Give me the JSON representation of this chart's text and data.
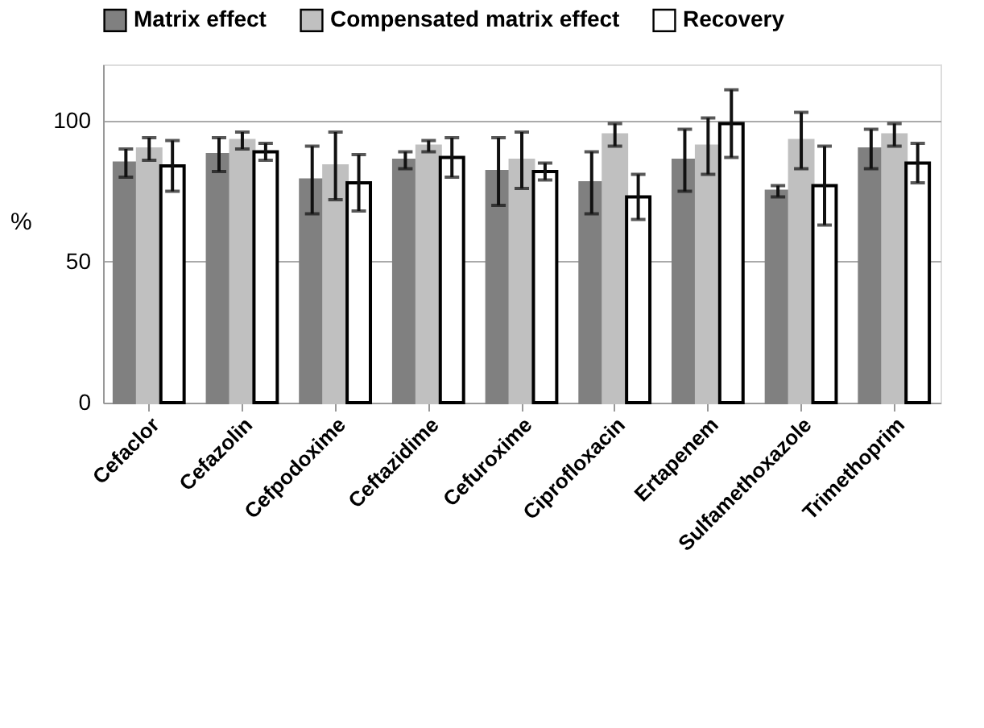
{
  "chart_data": {
    "type": "bar",
    "ylabel": "%",
    "categories": [
      "Cefaclor",
      "Cefazolin",
      "Cefpodoxime",
      "Ceftazidime",
      "Cefuroxime",
      "Ciprofloxacin",
      "Ertapenem",
      "Sulfamethoxazole",
      "Trimethoprim"
    ],
    "series": [
      {
        "name": "Matrix effect",
        "color": "#808080",
        "values": [
          85,
          88,
          79,
          86,
          82,
          78,
          86,
          75,
          90
        ],
        "errors": [
          5,
          6,
          12,
          3,
          12,
          11,
          11,
          2,
          7
        ]
      },
      {
        "name": "Compensated matrix effect",
        "color": "#c0c0c0",
        "values": [
          90,
          93,
          84,
          91,
          86,
          95,
          91,
          93,
          95
        ],
        "errors": [
          4,
          3,
          12,
          2,
          10,
          4,
          10,
          10,
          4
        ]
      },
      {
        "name": "Recovery",
        "color": "#ffffff",
        "values": [
          84,
          89,
          78,
          87,
          82,
          73,
          99,
          77,
          85
        ],
        "errors": [
          9,
          3,
          10,
          7,
          3,
          8,
          12,
          14,
          7
        ]
      }
    ],
    "ylim": [
      0,
      120
    ],
    "yticks": [
      0,
      50,
      100
    ],
    "grid": "y",
    "legend": "top"
  }
}
